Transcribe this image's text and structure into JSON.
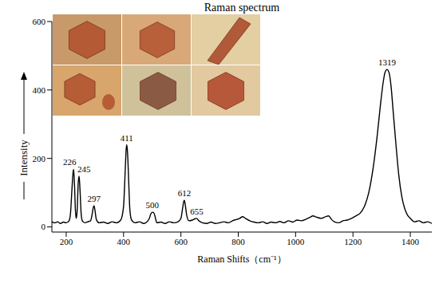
{
  "chart_data": {
    "type": "line",
    "title": "Raman spectrum",
    "x_label": "Raman Shifts（cm⁻¹）",
    "y_label": "Intensity",
    "color": "#000000",
    "grid": false,
    "xlim": [
      150,
      1475
    ],
    "ylim": [
      -15,
      600
    ],
    "xticks": [
      200,
      400,
      600,
      800,
      1000,
      1200,
      1400
    ],
    "yticks": [
      0,
      200,
      400,
      600
    ],
    "x": [
      150,
      160,
      170,
      180,
      190,
      200,
      210,
      215,
      220,
      224,
      226,
      229,
      232,
      235,
      238,
      242,
      245,
      248,
      252,
      256,
      265,
      275,
      285,
      290,
      294,
      297,
      300,
      305,
      315,
      330,
      345,
      360,
      375,
      390,
      400,
      405,
      409,
      411,
      414,
      418,
      422,
      428,
      440,
      455,
      470,
      485,
      490,
      495,
      500,
      505,
      510,
      516,
      530,
      545,
      560,
      575,
      590,
      600,
      606,
      610,
      612,
      615,
      620,
      628,
      640,
      650,
      655,
      662,
      675,
      690,
      705,
      720,
      735,
      750,
      765,
      780,
      795,
      805,
      815,
      825,
      840,
      855,
      870,
      885,
      900,
      915,
      930,
      945,
      960,
      975,
      990,
      1005,
      1020,
      1035,
      1050,
      1060,
      1075,
      1090,
      1105,
      1115,
      1125,
      1135,
      1150,
      1165,
      1180,
      1195,
      1210,
      1225,
      1240,
      1255,
      1270,
      1285,
      1295,
      1305,
      1312,
      1319,
      1326,
      1333,
      1340,
      1350,
      1360,
      1370,
      1380,
      1390,
      1400,
      1415,
      1430,
      1445,
      1460,
      1475
    ],
    "values": [
      15,
      12,
      15,
      10,
      14,
      12,
      18,
      40,
      110,
      160,
      168,
      120,
      50,
      25,
      45,
      130,
      148,
      110,
      40,
      18,
      12,
      15,
      18,
      35,
      55,
      62,
      50,
      22,
      12,
      14,
      10,
      15,
      12,
      20,
      60,
      150,
      225,
      240,
      215,
      130,
      50,
      20,
      12,
      15,
      10,
      18,
      25,
      38,
      43,
      42,
      30,
      12,
      14,
      10,
      15,
      12,
      15,
      25,
      55,
      75,
      78,
      65,
      35,
      18,
      20,
      24,
      25,
      18,
      12,
      10,
      14,
      10,
      12,
      15,
      12,
      18,
      22,
      25,
      30,
      25,
      18,
      14,
      12,
      15,
      10,
      14,
      12,
      16,
      12,
      18,
      14,
      20,
      18,
      22,
      28,
      32,
      28,
      25,
      30,
      32,
      22,
      15,
      12,
      18,
      20,
      25,
      32,
      40,
      60,
      100,
      170,
      270,
      350,
      420,
      452,
      460,
      450,
      410,
      340,
      240,
      150,
      90,
      55,
      35,
      25,
      15,
      18,
      12,
      15,
      10
    ],
    "annotations": [
      {
        "x": 226,
        "y": 168,
        "text": "226"
      },
      {
        "x": 245,
        "y": 148,
        "text": "245"
      },
      {
        "x": 297,
        "y": 62,
        "text": "297"
      },
      {
        "x": 411,
        "y": 240,
        "text": "411"
      },
      {
        "x": 500,
        "y": 43,
        "text": "500"
      },
      {
        "x": 612,
        "y": 78,
        "text": "612"
      },
      {
        "x": 655,
        "y": 25,
        "text": "655"
      },
      {
        "x": 1319,
        "y": 460,
        "text": "1319"
      }
    ]
  }
}
